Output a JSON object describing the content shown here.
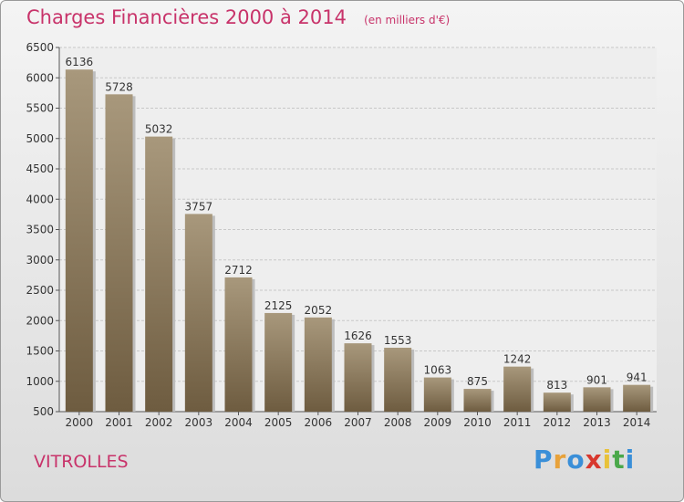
{
  "header": {
    "title": "Charges Financières 2000 à 2014",
    "subtitle": "(en milliers d'€)"
  },
  "footer": {
    "place": "VITROLLES",
    "logo": "Proxiti",
    "logo_letters": [
      {
        "char": "P",
        "color": "#3a8fd8"
      },
      {
        "char": "r",
        "color": "#e8a23a"
      },
      {
        "char": "o",
        "color": "#3a8fd8"
      },
      {
        "char": "x",
        "color": "#d8382e"
      },
      {
        "char": "i",
        "color": "#e8c23a"
      },
      {
        "char": "t",
        "color": "#4aa84a"
      },
      {
        "char": "i",
        "color": "#3a8fd8"
      }
    ]
  },
  "chart_data": {
    "type": "bar",
    "categories": [
      "2000",
      "2001",
      "2002",
      "2003",
      "2004",
      "2005",
      "2006",
      "2007",
      "2008",
      "2009",
      "2010",
      "2011",
      "2012",
      "2013",
      "2014"
    ],
    "values": [
      6136,
      5728,
      5032,
      3757,
      2712,
      2125,
      2052,
      1626,
      1553,
      1063,
      875,
      1242,
      813,
      901,
      941
    ],
    "ylim": [
      500,
      6500
    ],
    "yticks": [
      500,
      1000,
      1500,
      2000,
      2500,
      3000,
      3500,
      4000,
      4500,
      5000,
      5500,
      6000,
      6500
    ],
    "grid": true,
    "bar_color_top": "#a8987c",
    "bar_color_bottom": "#6e5c40",
    "text_color": "#333333"
  }
}
